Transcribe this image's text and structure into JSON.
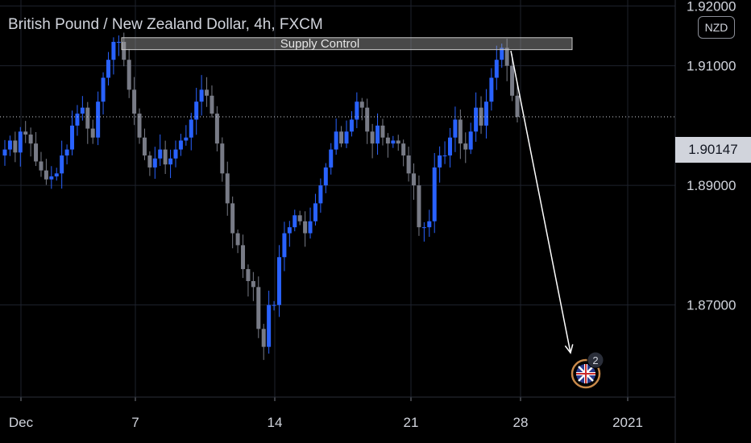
{
  "header": {
    "title": "British Pound / New Zealand Dollar, 4h, FXCM",
    "currency_badge": "NZD"
  },
  "last_price_label": "1.90147",
  "annotations": {
    "supply_zone_label": "Supply Control",
    "idea_badge_count": "2"
  },
  "colors": {
    "background": "#000000",
    "up_candle": "#2962ff",
    "down_candle": "#787b86",
    "grid": "#1e222d",
    "text": "#d1d4dc"
  },
  "chart_data": {
    "type": "candlestick",
    "symbol": "GBPNZD",
    "timeframe": "4h",
    "title": "British Pound / New Zealand Dollar, 4h, FXCM",
    "y_ticks": [
      "1.92000",
      "1.91000",
      "1.89000",
      "1.87000"
    ],
    "y_tick_values": [
      1.92,
      1.91,
      1.89,
      1.87
    ],
    "ylim": [
      1.8546,
      1.921
    ],
    "x_ticks": [
      "Dec",
      "7",
      "14",
      "21",
      "28",
      "2021"
    ],
    "grid": true,
    "last_price": 1.90147,
    "supply_zone": {
      "label": "Supply Control",
      "from": 1.9127,
      "to": 1.9147
    },
    "projection_arrow": {
      "from_price": 1.9125,
      "to_price": 1.862
    },
    "close_path": [
      1.896,
      1.8975,
      1.8955,
      1.899,
      1.8985,
      1.897,
      1.894,
      1.8925,
      1.891,
      1.8915,
      1.892,
      1.895,
      1.896,
      1.9,
      1.902,
      1.903,
      1.8995,
      1.898,
      1.904,
      1.908,
      1.911,
      1.914,
      1.914,
      1.911,
      1.906,
      1.902,
      1.898,
      1.895,
      1.893,
      1.8945,
      1.896,
      1.8935,
      1.8945,
      1.896,
      1.8975,
      1.898,
      1.901,
      1.904,
      1.906,
      1.905,
      1.902,
      1.897,
      1.892,
      1.887,
      1.882,
      1.88,
      1.876,
      1.874,
      1.873,
      1.866,
      1.863,
      1.87,
      1.87,
      1.878,
      1.882,
      1.883,
      1.885,
      1.884,
      1.882,
      1.884,
      1.887,
      1.89,
      1.893,
      1.896,
      1.899,
      1.897,
      1.899,
      1.901,
      1.904,
      1.903,
      1.899,
      1.897,
      1.9,
      1.898,
      1.897,
      1.8975,
      1.897,
      1.895,
      1.892,
      1.89,
      1.883,
      1.883,
      1.884,
      1.893,
      1.895,
      1.895,
      1.898,
      1.901,
      1.897,
      1.896,
      1.899,
      1.903,
      1.9,
      1.904,
      1.908,
      1.911,
      1.913,
      1.91,
      1.905,
      1.90147
    ]
  }
}
